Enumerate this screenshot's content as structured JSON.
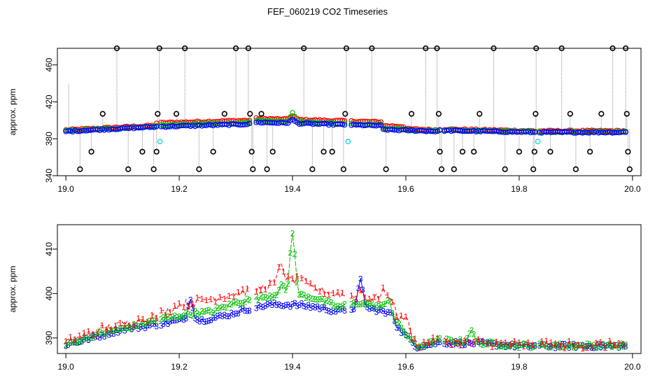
{
  "page_title": "FEF_060219  CO2 Timeseries",
  "colors": {
    "black": "#000000",
    "red": "#ff0000",
    "green": "#00c000",
    "blue": "#0000ff",
    "cyan": "#00d0e0",
    "gray": "#909090"
  },
  "chart_data": [
    {
      "type": "scatter",
      "title": "FEF_060219  CO2 Timeseries",
      "xlabel": "",
      "ylabel": "approx. ppm",
      "xlim": [
        18.985,
        20.015
      ],
      "ylim": [
        340,
        478
      ],
      "xticks": [
        "19.0",
        "19.2",
        "19.4",
        "19.6",
        "19.8",
        "20.0"
      ],
      "yticks": [
        "340",
        "380",
        "420",
        "460"
      ],
      "series": [
        {
          "name": "1",
          "color": "#ff0000",
          "description": "instrument 1 readings (red circles)"
        },
        {
          "name": "2",
          "color": "#00c000",
          "description": "instrument 2 readings (green circles)"
        },
        {
          "name": "3",
          "color": "#0000ff",
          "description": "instrument 3 readings (blue circles)"
        },
        {
          "name": "flagged",
          "color": "#000000",
          "description": "flagged outliers (black circles, clipped at 340 / 478)"
        },
        {
          "name": "cal",
          "color": "#00d0e0",
          "description": "calibration points (cyan circles)"
        }
      ],
      "baseline_segments": [
        {
          "x_start": 19.0,
          "x_end": 19.16,
          "start": 388,
          "end": 393
        },
        {
          "x_start": 19.16,
          "x_end": 19.33,
          "start": 393,
          "end": 396
        },
        {
          "x_start": 19.33,
          "x_end": 19.56,
          "start": 398,
          "end": 394
        },
        {
          "x_start": 19.56,
          "x_end": 19.66,
          "start": 390,
          "end": 388
        },
        {
          "x_start": 19.66,
          "x_end": 19.83,
          "start": 389,
          "end": 387
        },
        {
          "x_start": 19.83,
          "x_end": 19.99,
          "start": 387,
          "end": 387
        }
      ],
      "spikes": [
        {
          "x": 19.4,
          "y": 414
        },
        {
          "x": 19.52,
          "y": 403
        }
      ],
      "outliers": [
        {
          "x": 19.005,
          "y": 440
        },
        {
          "x": 19.025,
          "y": 347
        },
        {
          "x": 19.045,
          "y": 366
        },
        {
          "x": 19.065,
          "y": 407
        },
        {
          "x": 19.09,
          "y": 478
        },
        {
          "x": 19.11,
          "y": 347
        },
        {
          "x": 19.135,
          "y": 366
        },
        {
          "x": 19.155,
          "y": 347
        },
        {
          "x": 19.16,
          "y": 366
        },
        {
          "x": 19.162,
          "y": 407
        },
        {
          "x": 19.165,
          "y": 478
        },
        {
          "x": 19.195,
          "y": 407
        },
        {
          "x": 19.21,
          "y": 478
        },
        {
          "x": 19.235,
          "y": 347
        },
        {
          "x": 19.26,
          "y": 366
        },
        {
          "x": 19.28,
          "y": 407
        },
        {
          "x": 19.3,
          "y": 478
        },
        {
          "x": 19.322,
          "y": 478
        },
        {
          "x": 19.325,
          "y": 407
        },
        {
          "x": 19.328,
          "y": 366
        },
        {
          "x": 19.33,
          "y": 347
        },
        {
          "x": 19.345,
          "y": 407
        },
        {
          "x": 19.355,
          "y": 347
        },
        {
          "x": 19.365,
          "y": 366
        },
        {
          "x": 19.42,
          "y": 478
        },
        {
          "x": 19.435,
          "y": 347
        },
        {
          "x": 19.455,
          "y": 366
        },
        {
          "x": 19.47,
          "y": 366
        },
        {
          "x": 19.49,
          "y": 347
        },
        {
          "x": 19.493,
          "y": 407
        },
        {
          "x": 19.495,
          "y": 478
        },
        {
          "x": 19.54,
          "y": 478
        },
        {
          "x": 19.565,
          "y": 347
        },
        {
          "x": 19.61,
          "y": 407
        },
        {
          "x": 19.635,
          "y": 478
        },
        {
          "x": 19.655,
          "y": 478
        },
        {
          "x": 19.658,
          "y": 407
        },
        {
          "x": 19.66,
          "y": 366
        },
        {
          "x": 19.663,
          "y": 347
        },
        {
          "x": 19.685,
          "y": 347
        },
        {
          "x": 19.7,
          "y": 366
        },
        {
          "x": 19.72,
          "y": 366
        },
        {
          "x": 19.73,
          "y": 407
        },
        {
          "x": 19.755,
          "y": 478
        },
        {
          "x": 19.775,
          "y": 347
        },
        {
          "x": 19.8,
          "y": 366
        },
        {
          "x": 19.825,
          "y": 347
        },
        {
          "x": 19.827,
          "y": 366
        },
        {
          "x": 19.829,
          "y": 407
        },
        {
          "x": 19.83,
          "y": 478
        },
        {
          "x": 19.855,
          "y": 366
        },
        {
          "x": 19.875,
          "y": 478
        },
        {
          "x": 19.89,
          "y": 407
        },
        {
          "x": 19.9,
          "y": 347
        },
        {
          "x": 19.925,
          "y": 366
        },
        {
          "x": 19.945,
          "y": 407
        },
        {
          "x": 19.965,
          "y": 478
        },
        {
          "x": 19.988,
          "y": 478
        },
        {
          "x": 19.99,
          "y": 407
        },
        {
          "x": 19.992,
          "y": 366
        },
        {
          "x": 19.995,
          "y": 347
        }
      ],
      "cyan_points": [
        {
          "x": 19.166,
          "y": 377
        },
        {
          "x": 19.498,
          "y": 377
        },
        {
          "x": 19.833,
          "y": 377
        }
      ]
    },
    {
      "type": "line",
      "title": "",
      "xlabel": "",
      "ylabel": "approx. ppm",
      "xlim": [
        18.985,
        20.015
      ],
      "ylim": [
        386.5,
        415.5
      ],
      "xticks": [
        "19.0",
        "19.2",
        "19.4",
        "19.6",
        "19.8",
        "20.0"
      ],
      "yticks": [
        "390",
        "400",
        "410"
      ],
      "series": [
        {
          "name": "1",
          "color": "#ff0000",
          "marker_label": "1",
          "keypoints": [
            [
              19.0,
              389
            ],
            [
              19.06,
              392
            ],
            [
              19.1,
              393
            ],
            [
              19.16,
              395
            ],
            [
              19.2,
              397.5
            ],
            [
              19.26,
              399
            ],
            [
              19.3,
              400
            ],
            [
              19.34,
              401
            ],
            [
              19.38,
              403
            ],
            [
              19.4,
              403
            ],
            [
              19.44,
              401
            ],
            [
              19.48,
              400
            ],
            [
              19.52,
              399
            ],
            [
              19.56,
              399
            ],
            [
              19.58,
              396
            ],
            [
              19.62,
              388.5
            ],
            [
              19.66,
              389.5
            ],
            [
              19.72,
              389
            ],
            [
              19.8,
              388.5
            ],
            [
              19.9,
              388.5
            ],
            [
              19.99,
              388.5
            ]
          ],
          "peaks": [
            [
              19.38,
              407
            ],
            [
              19.415,
              404
            ],
            [
              19.52,
              401
            ],
            [
              19.56,
              401
            ],
            [
              19.575,
              399
            ],
            [
              19.6,
              395
            ]
          ]
        },
        {
          "name": "2",
          "color": "#00c000",
          "marker_label": "2",
          "keypoints": [
            [
              19.0,
              388.5
            ],
            [
              19.06,
              391
            ],
            [
              19.1,
              392
            ],
            [
              19.16,
              394
            ],
            [
              19.2,
              395
            ],
            [
              19.22,
              395.5
            ],
            [
              19.26,
              396
            ],
            [
              19.3,
              398
            ],
            [
              19.34,
              399
            ],
            [
              19.38,
              400
            ],
            [
              19.4,
              400
            ],
            [
              19.44,
              399
            ],
            [
              19.48,
              397
            ],
            [
              19.52,
              398
            ],
            [
              19.56,
              397
            ],
            [
              19.58,
              394
            ],
            [
              19.62,
              388
            ],
            [
              19.66,
              389.5
            ],
            [
              19.72,
              389
            ],
            [
              19.8,
              388.3
            ],
            [
              19.9,
              388.3
            ],
            [
              19.99,
              388.3
            ]
          ],
          "peaks": [
            [
              19.4,
              414
            ],
            [
              19.38,
              402
            ],
            [
              19.57,
              399
            ],
            [
              19.715,
              392
            ]
          ]
        },
        {
          "name": "3",
          "color": "#0000ff",
          "marker_label": "3",
          "keypoints": [
            [
              19.0,
              388.5
            ],
            [
              19.06,
              390.5
            ],
            [
              19.1,
              392
            ],
            [
              19.16,
              393
            ],
            [
              19.2,
              394
            ],
            [
              19.24,
              394
            ],
            [
              19.28,
              395
            ],
            [
              19.32,
              396.5
            ],
            [
              19.36,
              397.5
            ],
            [
              19.4,
              397.5
            ],
            [
              19.44,
              397
            ],
            [
              19.48,
              396
            ],
            [
              19.52,
              397
            ],
            [
              19.56,
              396
            ],
            [
              19.58,
              393
            ],
            [
              19.62,
              388
            ],
            [
              19.66,
              389
            ],
            [
              19.72,
              388.8
            ],
            [
              19.8,
              388.2
            ],
            [
              19.9,
              388.2
            ],
            [
              19.99,
              388.2
            ]
          ],
          "peaks": [
            [
              19.22,
              399
            ],
            [
              19.52,
              403
            ],
            [
              19.575,
              396
            ]
          ]
        }
      ]
    }
  ]
}
